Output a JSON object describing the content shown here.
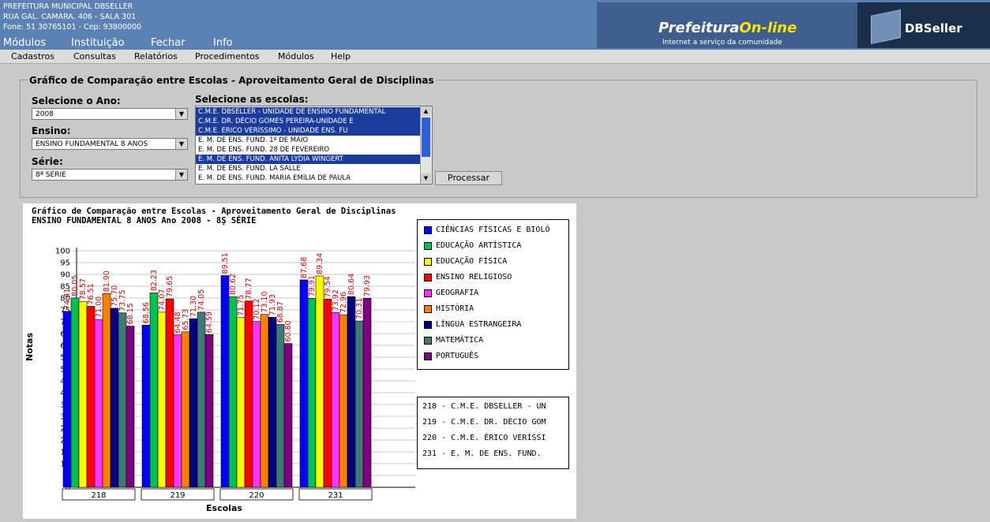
{
  "header": {
    "info_lines": [
      "PREFEITURA MUNICIPAL DBSELLER",
      "RUA GAL. CAMARA, 406 - SALA 301",
      "Fone: 51 30765101  -  Cep: 93800000"
    ],
    "brand_prefix": "Prefeitura",
    "brand_suffix": "On-line",
    "brand_tagline": "Internet a serviço da comunidade",
    "brand_right": "DBSeller",
    "top_menu": [
      "Módulos",
      "Instituição",
      "Fechar",
      "Info"
    ]
  },
  "submenu": [
    "Cadastros",
    "Consultas",
    "Relatórios",
    "Procedimentos",
    "Módulos",
    "Help"
  ],
  "form": {
    "legend": "Gráfico de Comparação entre Escolas - Aproveitamento Geral de Disciplinas",
    "year_label": "Selecione o Ano:",
    "year_value": "2008",
    "ensino_label": "Ensino:",
    "ensino_value": "ENSINO FUNDAMENTAL 8 ANOS",
    "serie_label": "Série:",
    "serie_value": "8ª SÉRIE",
    "schools_label": "Selecione as escolas:",
    "schools": [
      {
        "name": "C.M.E. DBSELLER - UNIDADE DE ENSINO FUNDAMENTAL",
        "selected": true
      },
      {
        "name": "C.M.E. DR. DÉCIO GOMES PEREIRA-UNIDADE E",
        "selected": true
      },
      {
        "name": "C.M.E. ÉRICO VERÍSSIMO - UNIDADE ENS. FU",
        "selected": true
      },
      {
        "name": "E. M. DE ENS. FUND. 1º DE MAIO",
        "selected": false
      },
      {
        "name": "E. M. DE ENS. FUND. 28 DE FEVEREIRO",
        "selected": false
      },
      {
        "name": "E. M. DE ENS. FUND. ANITA LYDIA WINGERT",
        "selected": true
      },
      {
        "name": "E. M. DE ENS. FUND. LA SALLE",
        "selected": false
      },
      {
        "name": "E. M. DE ENS. FUND. MARIA EMÍLIA DE PAULA",
        "selected": false
      }
    ],
    "process_label": "Processar"
  },
  "chart_data": {
    "type": "bar",
    "title": "Gráfico de Comparação entre Escolas - Aproveitamento Geral de Disciplinas",
    "subtitle": "ENSINO FUNDAMENTAL 8 ANOS  Ano 2008 - 8Ş SÉRIE",
    "xlabel": "Escolas",
    "ylabel": "Notas",
    "ylim": [
      0,
      100
    ],
    "yticks": [
      0,
      5,
      10,
      15,
      20,
      25,
      30,
      35,
      40,
      45,
      50,
      55,
      60,
      65,
      70,
      75,
      80,
      85,
      90,
      95,
      100
    ],
    "grid": true,
    "legend_position": "right",
    "categories": [
      "218",
      "219",
      "220",
      "231"
    ],
    "series": [
      {
        "name": "CIÊNCIAS FÍSICAS E BIOLÓ",
        "color": "#0000ff",
        "values": [
          74.41,
          68.56,
          89.51,
          87.68
        ]
      },
      {
        "name": "EDUCAÇÃO ARTÍSTICA",
        "color": "#00c050",
        "values": [
          80.05,
          82.23,
          80.62,
          79.91
        ]
      },
      {
        "name": "EDUCAÇÃO FÍSICA",
        "color": "#ffff00",
        "values": [
          78.57,
          74.07,
          71.75,
          89.34
        ]
      },
      {
        "name": "ENSINO RELIGIOSO",
        "color": "#ff0000",
        "values": [
          76.51,
          79.65,
          78.77,
          79.54
        ]
      },
      {
        "name": "GEOGRAFIA",
        "color": "#ff33ff",
        "values": [
          71.0,
          64.48,
          70.12,
          73.92
        ]
      },
      {
        "name": "HISTÓRIA",
        "color": "#ff8000",
        "values": [
          81.9,
          65.73,
          73.1,
          72.96
        ]
      },
      {
        "name": "LÍNGUA ESTRANGEIRA",
        "color": "#000080",
        "values": [
          75.7,
          71.3,
          71.93,
          80.64
        ]
      },
      {
        "name": "MATEMÁTICA",
        "color": "#3d7a78",
        "values": [
          73.75,
          74.05,
          68.87,
          70.31
        ]
      },
      {
        "name": "PORTUGUÊS",
        "color": "#800080",
        "values": [
          68.15,
          64.59,
          60.8,
          79.93
        ]
      }
    ],
    "category_legend": [
      "218 - C.M.E. DBSELLER - UN",
      "219 - C.M.E. DR. DÉCIO GOM",
      "220 - C.M.E. ÉRICO VERÍSSI",
      "231 - E. M. DE ENS. FUND."
    ]
  }
}
